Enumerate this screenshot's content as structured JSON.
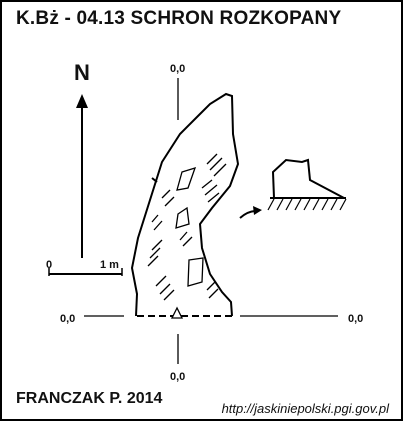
{
  "header": {
    "title": "K.Bż - 04.13  SCHRON ROZKOPANY"
  },
  "compass": {
    "north_label": "N"
  },
  "scale": {
    "start_label": "0",
    "end_label": "1 m"
  },
  "datum_labels": {
    "top": "0,0",
    "left": "0,0",
    "right": "0,0",
    "bottom": "0,0"
  },
  "footer": {
    "author": "FRANCZAK P. 2014",
    "url": "http://jaskiniepolski.pgi.gov.pl"
  }
}
